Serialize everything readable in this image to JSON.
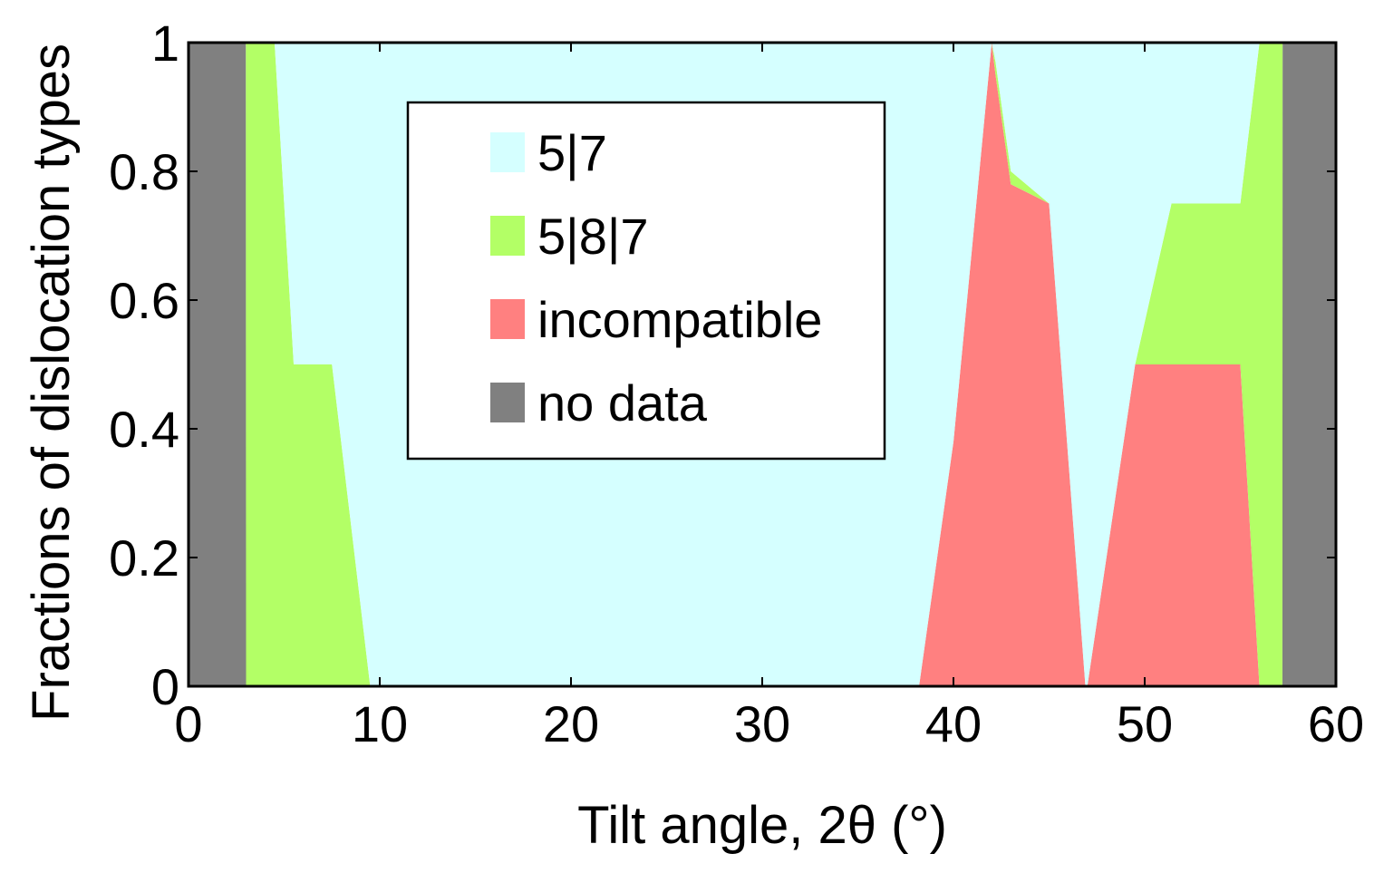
{
  "chart_data": {
    "type": "area",
    "stacked": true,
    "xlabel": "Tilt angle, 2θ (°)",
    "ylabel": "Fractions of dislocation types",
    "xlim": [
      0,
      60
    ],
    "ylim": [
      0,
      1
    ],
    "xticks": [
      0,
      10,
      20,
      30,
      40,
      50,
      60
    ],
    "yticks": [
      0,
      0.2,
      0.4,
      0.6,
      0.8,
      1
    ],
    "ytick_labels": [
      "0",
      "0.2",
      "0.4",
      "0.6",
      "0.8",
      "1"
    ],
    "grid": false,
    "legend_position": "upper-center",
    "x": [
      0,
      3.0,
      3.01,
      4.5,
      5.5,
      7.5,
      9.5,
      38.2,
      40.0,
      42.0,
      42.2,
      43.0,
      45.0,
      46.9,
      47.0,
      49.5,
      51.4,
      53.0,
      55.0,
      56.0,
      57.2,
      57.21,
      60
    ],
    "series": [
      {
        "name": "no data",
        "color": "#808080",
        "values": [
          1,
          1,
          0,
          0,
          0,
          0,
          0,
          0,
          0,
          0,
          0,
          0,
          0,
          0,
          0,
          0,
          0,
          0,
          0,
          0,
          0,
          1,
          1
        ]
      },
      {
        "name": "incompatible",
        "color": "#ff8080",
        "values": [
          0,
          0,
          0,
          0,
          0,
          0,
          0,
          0,
          0.38,
          1.0,
          0.95,
          0.78,
          0.75,
          0,
          0,
          0.5,
          0.5,
          0.5,
          0.5,
          0,
          0,
          0,
          0
        ]
      },
      {
        "name": "5|8|7",
        "color": "#b3ff66",
        "values": [
          0,
          0,
          1.0,
          1.0,
          0.5,
          0.5,
          0,
          0,
          0,
          0,
          0.02,
          0.02,
          0,
          0,
          0,
          0,
          0.25,
          0.25,
          0.25,
          1.0,
          1.0,
          0,
          0
        ]
      },
      {
        "name": "5|7",
        "color": "#d5ffff",
        "values": [
          0,
          0,
          0,
          0,
          0.5,
          0.5,
          1.0,
          1.0,
          0.62,
          0,
          0.03,
          0.2,
          0.25,
          1.0,
          1.0,
          0.5,
          0.25,
          0.25,
          0.25,
          0,
          0,
          0,
          0
        ]
      }
    ],
    "legend_order": [
      "5|7",
      "5|8|7",
      "incompatible",
      "no data"
    ]
  }
}
